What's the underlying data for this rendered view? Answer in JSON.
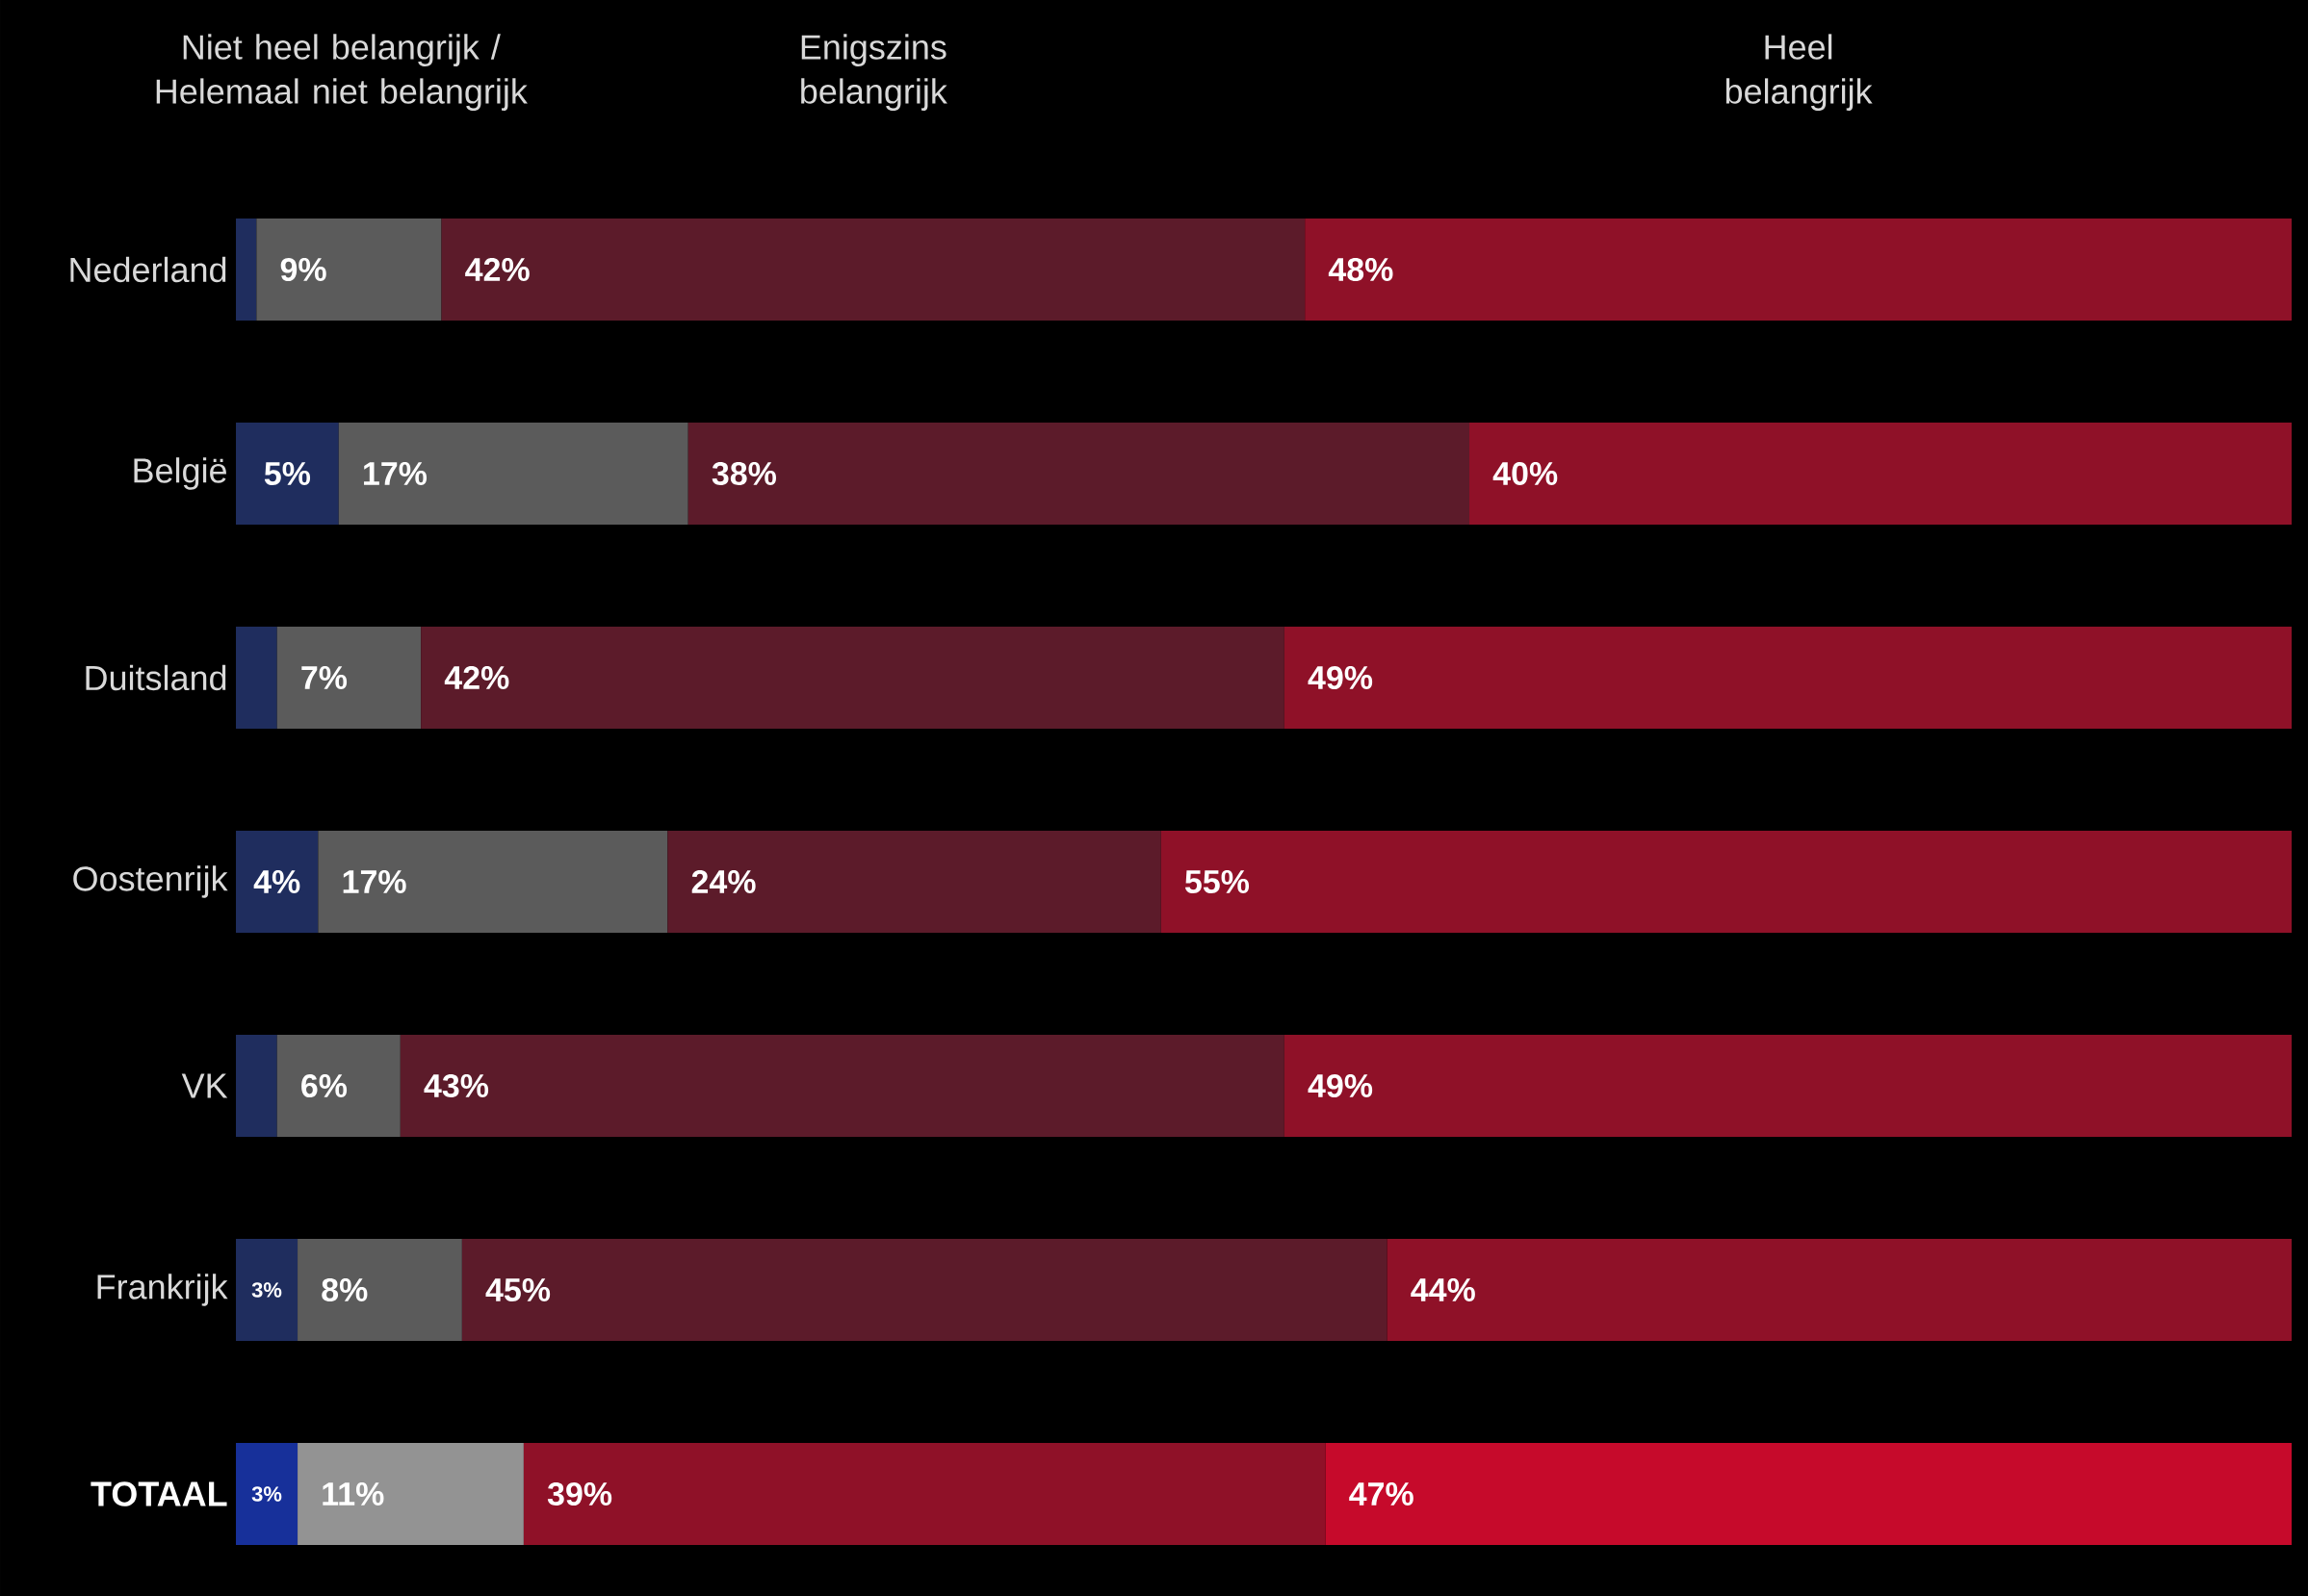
{
  "chart_data": {
    "type": "bar",
    "orientation": "horizontal",
    "stacked": true,
    "annotations": [
      "Niet heel belangrijk / Helemaal niet belangrijk",
      "Enigszins belangrijk",
      "Heel belangrijk"
    ],
    "categories": [
      "Nederland",
      "België",
      "Duitsland",
      "Oostenrijk",
      "VK",
      "Frankrijk",
      "TOTAAL"
    ],
    "series": [
      {
        "colors": [
          "#1f2d5e",
          "#1f2d5e",
          "#1f2d5e",
          "#1f2d5e",
          "#1f2d5e",
          "#1f2d5e",
          "#17309a"
        ],
        "values": [
          1,
          5,
          2,
          4,
          2,
          3,
          3
        ],
        "value_labels": [
          null,
          "5%",
          null,
          "4%",
          null,
          "3%",
          "3%"
        ]
      },
      {
        "colors": [
          "#5b5b5b",
          "#5b5b5b",
          "#5b5b5b",
          "#5b5b5b",
          "#5b5b5b",
          "#5b5b5b",
          "#939393"
        ],
        "values": [
          9,
          17,
          7,
          17,
          6,
          8,
          11
        ],
        "value_labels": [
          "9%",
          "17%",
          "7%",
          "17%",
          "6%",
          "8%",
          "11%"
        ]
      },
      {
        "colors": [
          "#5c1b2a",
          "#5c1b2a",
          "#5c1b2a",
          "#5c1b2a",
          "#5c1b2a",
          "#5c1b2a",
          "#8f1128"
        ],
        "values": [
          42,
          38,
          42,
          24,
          43,
          45,
          39
        ],
        "value_labels": [
          "42%",
          "38%",
          "42%",
          "24%",
          "43%",
          "45%",
          "39%"
        ]
      },
      {
        "colors": [
          "#8f1128",
          "#8f1128",
          "#8f1128",
          "#8f1128",
          "#8f1128",
          "#8f1128",
          "#c60a2b"
        ],
        "values": [
          48,
          40,
          49,
          55,
          49,
          44,
          47
        ],
        "value_labels": [
          "48%",
          "40%",
          "49%",
          "55%",
          "49%",
          "44%",
          "47%"
        ]
      }
    ]
  }
}
